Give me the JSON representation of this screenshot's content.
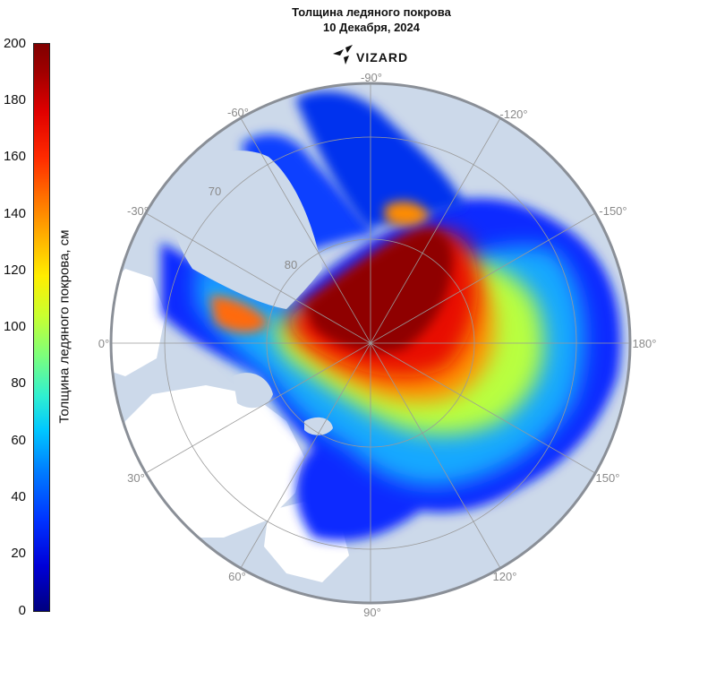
{
  "header": {
    "title_line1": "Толщина ледяного покрова",
    "title_line2": "10 Декабря, 2024",
    "logo_text": "VIZARD"
  },
  "colorbar": {
    "label": "Толщина ледяного покрова, см",
    "ticks": [
      "200",
      "180",
      "160",
      "140",
      "120",
      "100",
      "80",
      "60",
      "40",
      "20",
      "0"
    ],
    "min": 0,
    "max": 200,
    "colormap": "jet"
  },
  "map": {
    "projection": "north polar stereographic",
    "longitude_labels": {
      "lon_m90": "-90°",
      "lon_m60": "-60°",
      "lon_m120": "-120°",
      "lon_m30": "-30°",
      "lon_m150": "-150°",
      "lon_0": "0°",
      "lon_180": "180°",
      "lon_30": "30°",
      "lon_150": "150°",
      "lon_60": "60°",
      "lon_120": "120°",
      "lon_90": "90°"
    },
    "latitude_labels": {
      "lat_70": "70",
      "lat_80": "80"
    },
    "colors": {
      "land": "#ccd9ea",
      "open_water": "#ffffff",
      "graticule": "#9a9a9a",
      "frame": "#8a8f97"
    }
  }
}
